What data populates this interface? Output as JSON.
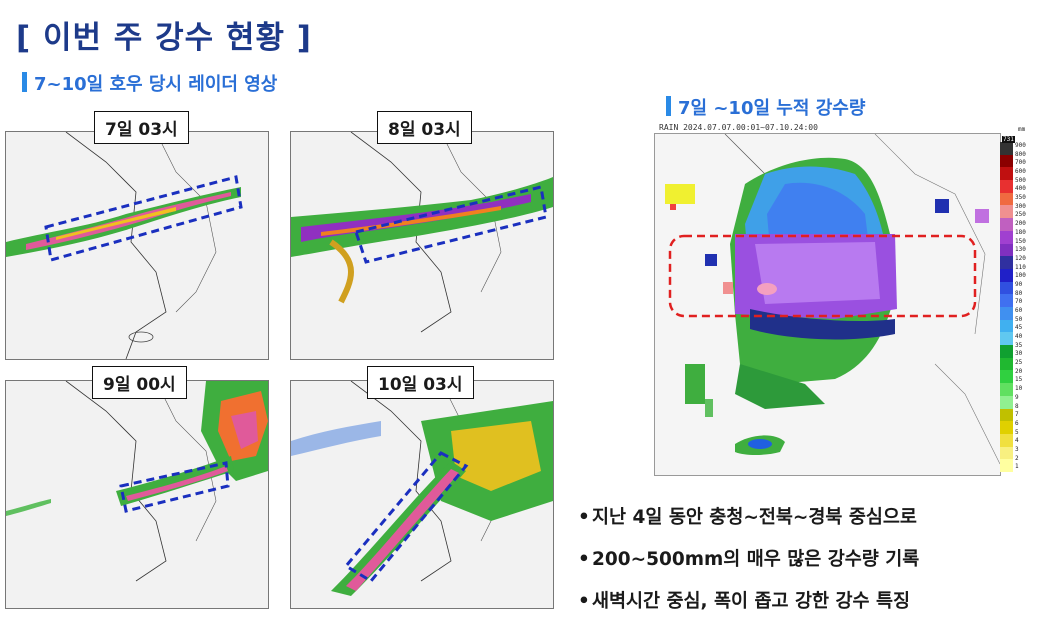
{
  "title": "[ 이번 주 강수 현황 ]",
  "left_heading": "7~10일 호우 당시 레이더 영상",
  "right_heading": "7일 ~10일 누적 강수량",
  "radar_panels": [
    {
      "label": "7일 03시"
    },
    {
      "label": "8일 03시"
    },
    {
      "label": "9일 00시"
    },
    {
      "label": "10일 03시"
    }
  ],
  "cumulative_map": {
    "header": "RAIN  2024.07.07.00:01~07.10.24:00",
    "unit": "mm",
    "max_label": "731",
    "scale_ticks": [
      "900",
      "800",
      "700",
      "600",
      "500",
      "400",
      "350",
      "300",
      "250",
      "200",
      "180",
      "150",
      "130",
      "120",
      "110",
      "100",
      "90",
      "80",
      "70",
      "60",
      "50",
      "45",
      "40",
      "35",
      "30",
      "25",
      "20",
      "15",
      "10",
      "9",
      "8",
      "7",
      "6",
      "5",
      "4",
      "3",
      "2",
      "1"
    ],
    "scale_colors": [
      "#333333",
      "#8b0000",
      "#c01010",
      "#e83030",
      "#f06a40",
      "#f09090",
      "#c060c0",
      "#a040d0",
      "#8030c0",
      "#3030a0",
      "#2020c8",
      "#3050e0",
      "#4070f0",
      "#4090f0",
      "#40b0f0",
      "#60c8f0",
      "#10a030",
      "#20b830",
      "#30d040",
      "#60e060",
      "#90f090",
      "#c0c000",
      "#e0d000",
      "#f0e040",
      "#f8f080",
      "#ffffa0"
    ]
  },
  "bullets": [
    "지난 4일 동안 충청~전북~경북 중심으로",
    "200~500mm의 매우 많은 강수량 기록",
    "새벽시간 중심, 폭이 좁고 강한 강수 특징"
  ],
  "colors": {
    "title": "#1d3a8a",
    "heading": "#2a6fd6",
    "box_blue": "#1a2fbf",
    "box_red": "#e02020"
  }
}
